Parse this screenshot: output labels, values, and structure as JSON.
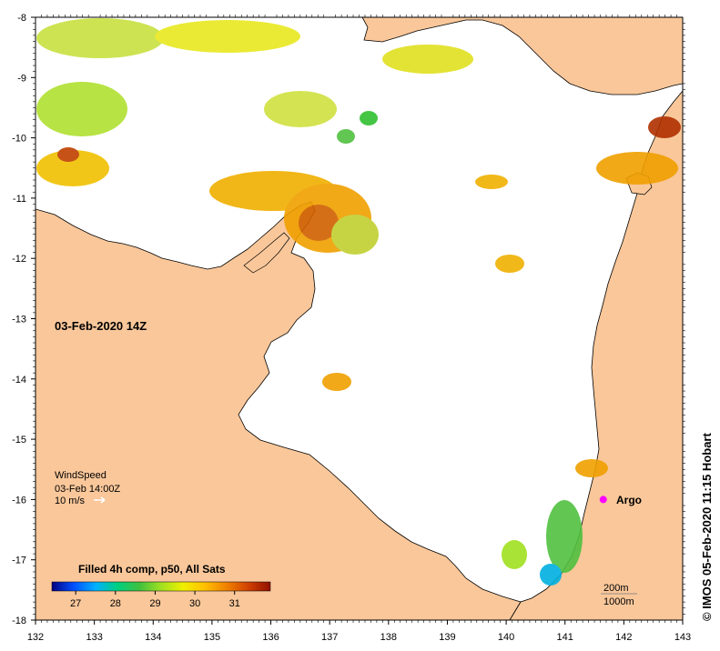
{
  "map": {
    "date_label": "03-Feb-2020 14Z",
    "credit": "© IMOS 05-Feb-2020 11:15 Hobart",
    "x_ticks": [
      "132",
      "133",
      "134",
      "135",
      "136",
      "137",
      "138",
      "139",
      "140",
      "141",
      "142",
      "143"
    ],
    "y_ticks": [
      "-8",
      "-9",
      "-10",
      "-11",
      "-12",
      "-13",
      "-14",
      "-15",
      "-16",
      "-17",
      "-18"
    ],
    "lon_range": [
      132,
      143
    ],
    "lat_range": [
      -18,
      -8
    ],
    "colors": {
      "land": "#f9c79a",
      "sea": "#ffffff",
      "coast": "#000000",
      "argo": "#ff00ff"
    }
  },
  "wind": {
    "title": "WindSpeed",
    "time": "03-Feb 14:00Z",
    "scale": "10 m/s"
  },
  "argo": {
    "label": "Argo",
    "lon": 141.65,
    "lat": -16.0
  },
  "isobaths": {
    "shallow": "200m",
    "deep": "1000m"
  },
  "colorbar": {
    "title": "Filled 4h comp, p50, All Sats",
    "ticks": [
      "27",
      "28",
      "29",
      "30",
      "31"
    ],
    "range": [
      26.4,
      31.9
    ],
    "stops": [
      "#000080",
      "#0050ff",
      "#00b0ff",
      "#00d080",
      "#40c040",
      "#a0e020",
      "#f0f000",
      "#ffc000",
      "#f08000",
      "#d04000",
      "#901000"
    ]
  }
}
